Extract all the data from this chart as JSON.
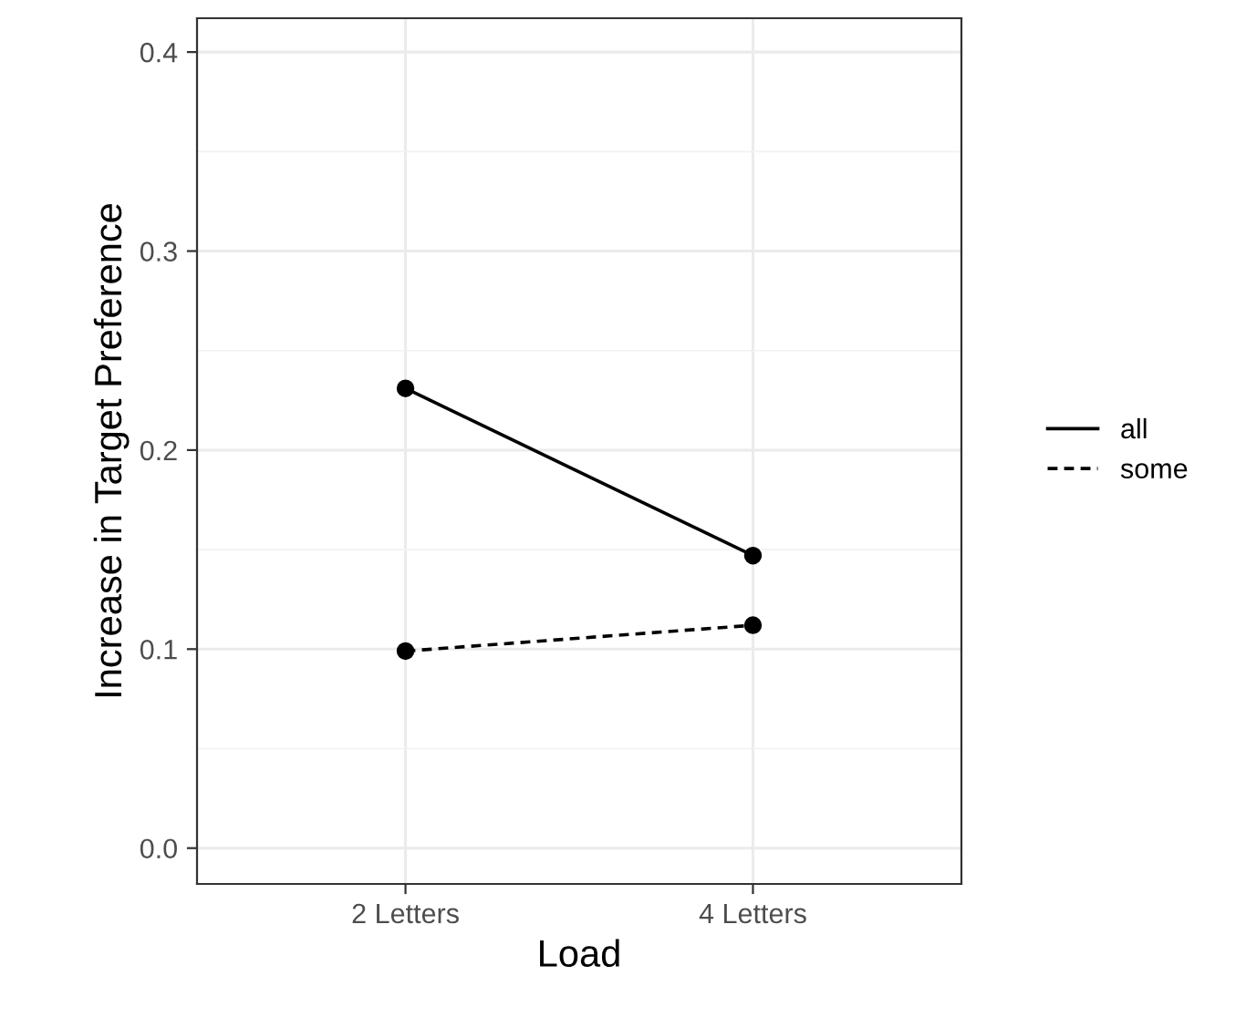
{
  "chart_data": {
    "type": "line",
    "xlabel": "Load",
    "ylabel": "Increase in Target Preference",
    "categories": [
      "2 Letters",
      "4 Letters"
    ],
    "series": [
      {
        "name": "all",
        "color": "#000000",
        "values": [
          0.231,
          0.147
        ],
        "line_style": "solid"
      },
      {
        "name": "some",
        "color": "#000000",
        "values": [
          0.099,
          0.112
        ],
        "line_style": "dashed"
      }
    ],
    "ylim": [
      -0.018,
      0.417
    ],
    "yticks": [
      {
        "value": 0,
        "label": "0.0"
      },
      {
        "value": 0.05,
        "label": null
      },
      0.1,
      {
        "value": 0.15,
        "label": null
      },
      0.2,
      {
        "value": 0.25,
        "label": null
      },
      0.3,
      {
        "value": 0.35,
        "label": null
      },
      0.4
    ],
    "grid": true,
    "legend": "right",
    "marker": "circle"
  }
}
